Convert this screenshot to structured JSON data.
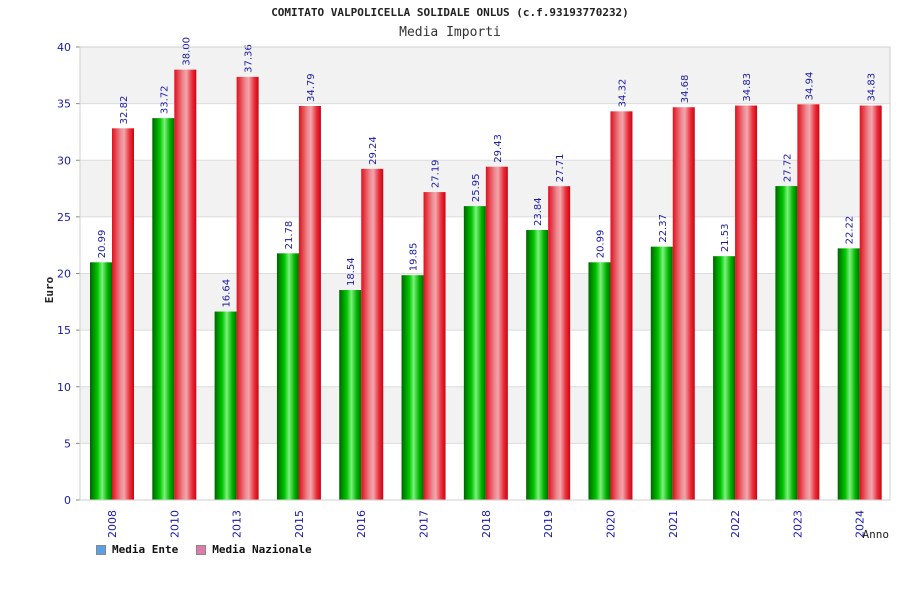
{
  "title": "COMITATO VALPOLICELLA SOLIDALE ONLUS (c.f.93193770232)",
  "subtitle": "Media Importi",
  "colors": {
    "ente": "#00b400",
    "nazionale": "#e8202c",
    "legend_ente": "#5aa0e6",
    "legend_nazionale": "#e07aa8",
    "tick": "#1a1aa6"
  },
  "chart_data": {
    "type": "bar",
    "xlabel": "Anno",
    "ylabel": "Euro",
    "ylim": [
      0,
      40
    ],
    "yticks": [
      0,
      5,
      10,
      15,
      20,
      25,
      30,
      35,
      40
    ],
    "grid": true,
    "legend_position": "bottom-left",
    "categories": [
      "2008",
      "2010",
      "2013",
      "2015",
      "2016",
      "2017",
      "2018",
      "2019",
      "2020",
      "2021",
      "2022",
      "2023",
      "2024"
    ],
    "series": [
      {
        "name": "Media Ente",
        "values": [
          20.99,
          33.72,
          16.64,
          21.78,
          18.54,
          19.85,
          25.95,
          23.84,
          20.99,
          22.37,
          21.53,
          27.72,
          22.22
        ],
        "labels": [
          "20.99",
          "33.72",
          "16.64",
          "21.78",
          "18.54",
          "19.85",
          "25.95",
          "23.84",
          "20.99",
          "22.37",
          "21.53",
          "27.72",
          "22.22"
        ]
      },
      {
        "name": "Media Nazionale",
        "values": [
          32.82,
          38.0,
          37.36,
          34.79,
          29.24,
          27.19,
          29.43,
          27.71,
          34.32,
          34.68,
          34.83,
          34.94,
          34.83
        ],
        "labels": [
          "32.82",
          "38.00",
          "37.36",
          "34.79",
          "29.24",
          "27.19",
          "29.43",
          "27.71",
          "34.32",
          "34.68",
          "34.83",
          "34.94",
          "34.83"
        ]
      }
    ]
  }
}
